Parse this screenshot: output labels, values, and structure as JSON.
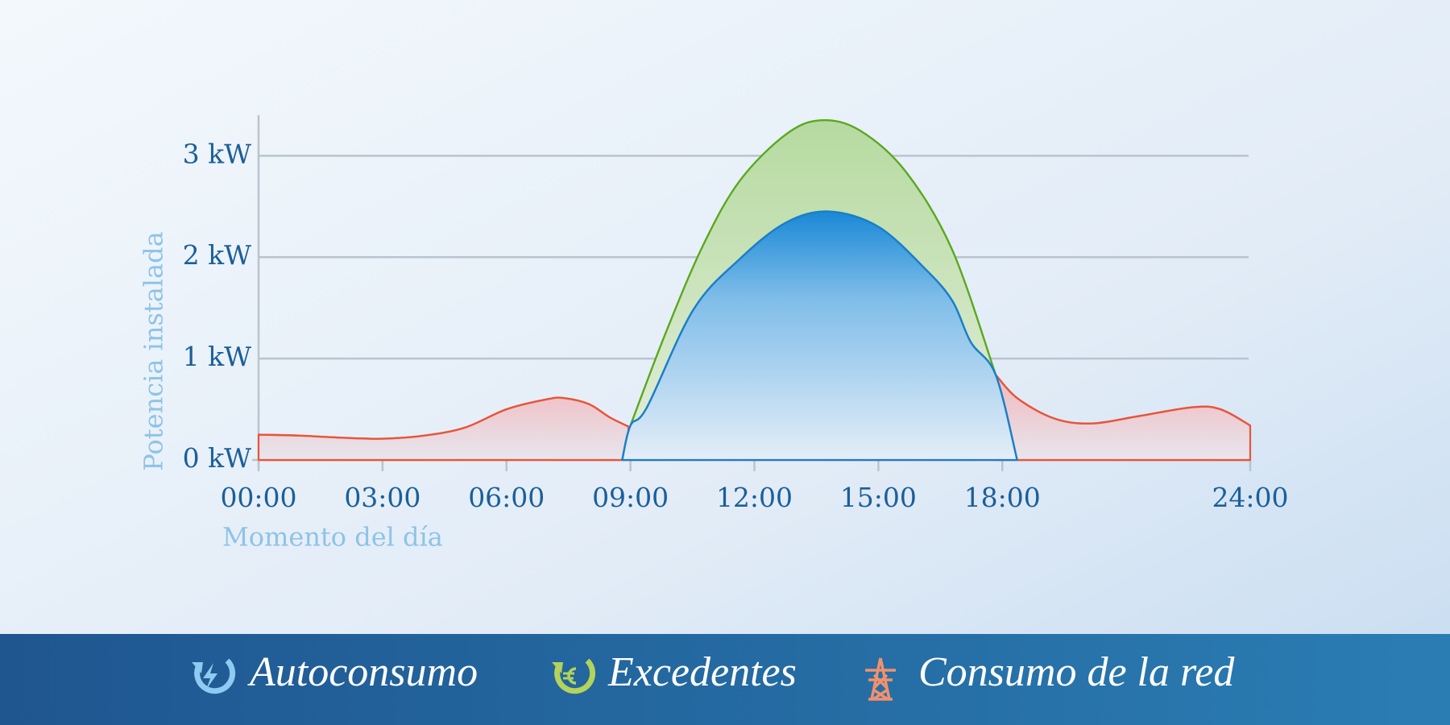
{
  "chart_data": {
    "type": "area",
    "y_label": "Potencia instalada",
    "x_label": "Momento del día",
    "xlim": [
      0,
      24
    ],
    "ylim": [
      0,
      3.4
    ],
    "xticks": [
      {
        "value": 0,
        "label": "00:00"
      },
      {
        "value": 3,
        "label": "03:00"
      },
      {
        "value": 6,
        "label": "06:00"
      },
      {
        "value": 9,
        "label": "09:00"
      },
      {
        "value": 12,
        "label": "12:00"
      },
      {
        "value": 15,
        "label": "15:00"
      },
      {
        "value": 18,
        "label": "18:00"
      },
      {
        "value": 24,
        "label": "24:00"
      }
    ],
    "yticks": [
      {
        "value": 0,
        "label": "0 kW"
      },
      {
        "value": 1,
        "label": "1 kW"
      },
      {
        "value": 2,
        "label": "2 kW"
      },
      {
        "value": 3,
        "label": "3 kW"
      }
    ],
    "grid": true,
    "series": [
      {
        "name": "Autoconsumo",
        "color": "#1a7fc8",
        "x": [
          8.8,
          9.0,
          9.4,
          10.52,
          11.64,
          12.76,
          13.81,
          15.0,
          16.12,
          16.79,
          17.24,
          17.84,
          18.36
        ],
        "values": [
          0,
          0.34,
          0.52,
          1.48,
          1.98,
          2.34,
          2.45,
          2.3,
          1.89,
          1.57,
          1.16,
          0.84,
          0
        ]
      },
      {
        "name": "Excedentes",
        "color": "#5aa81e",
        "x": [
          9.0,
          9.85,
          10.75,
          11.64,
          12.76,
          13.61,
          14.55,
          15.67,
          16.79,
          17.84
        ],
        "values": [
          0.34,
          1.25,
          2.11,
          2.75,
          3.21,
          3.35,
          3.25,
          2.84,
          2.07,
          0.84
        ]
      },
      {
        "name": "Consumo de la red",
        "color": "#e8553a",
        "x": [
          0,
          1,
          2,
          3,
          4,
          5,
          6,
          7,
          7.4,
          8,
          8.5,
          8.95,
          null,
          17.84,
          18.36,
          19.25,
          20.15,
          21.27,
          22.6,
          23.28,
          24
        ],
        "values": [
          0.25,
          0.24,
          0.22,
          0.21,
          0.24,
          0.32,
          0.5,
          0.6,
          0.61,
          0.55,
          0.42,
          0.33,
          null,
          0.84,
          0.61,
          0.41,
          0.36,
          0.43,
          0.52,
          0.5,
          0.34
        ]
      }
    ]
  }
}
